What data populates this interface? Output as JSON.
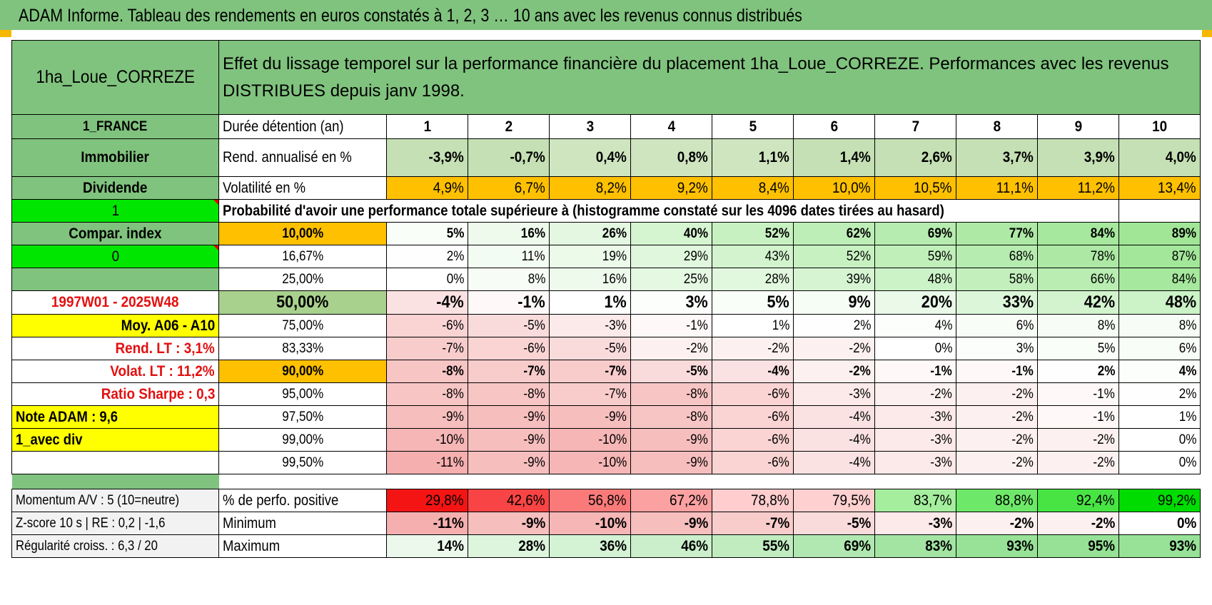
{
  "report_title": "ADAM Informe. Tableau des rendements en euros constatés à 1, 2, 3 … 10 ans avec les revenus connus distribués",
  "fund_name": "1ha_Loue_CORREZE",
  "description": "Effet du lissage temporel sur la performance financière du placement 1ha_Loue_CORREZE. Performances avec les revenus DISTRIBUES depuis janv 1998.",
  "side": {
    "country": "1_FRANCE",
    "category": "Immobilier",
    "income": "Dividende",
    "flag1": "1",
    "compar_index": "Compar. index",
    "flag0": "0",
    "period": "1997W01 - 2025W48",
    "moy": "Moy. A06 - A10",
    "rend_lt": "Rend. LT :   3,1%",
    "volat_lt": "Volat. LT :   11,2%",
    "sharpe": "Ratio Sharpe :    0,3",
    "note": "Note ADAM : 9,6",
    "div": "1_avec div",
    "momentum": "Momentum A/V : 5 (10=neutre)",
    "zscore": "Z-score 10 s | RE : 0,2 | -1,6",
    "regularite": "Régularité croiss. : 6,3 / 20"
  },
  "labels": {
    "duree": "Durée détention (an)",
    "rend": "Rend. annualisé en %",
    "volat": "Volatilité en %",
    "proba": "Probabilité d'avoir une performance totale supérieure à (histogramme constaté sur les 4096 dates tirées au hasard)",
    "pct_pos": "% de perfo. positive",
    "minimum": "Minimum",
    "maximum": "Maximum"
  },
  "years": [
    "1",
    "2",
    "3",
    "4",
    "5",
    "6",
    "7",
    "8",
    "9",
    "10"
  ],
  "rend": [
    "-3,9%",
    "-0,7%",
    "0,4%",
    "0,8%",
    "1,1%",
    "1,4%",
    "2,6%",
    "3,7%",
    "3,9%",
    "4,0%"
  ],
  "volat": [
    "4,9%",
    "6,7%",
    "8,2%",
    "9,2%",
    "8,4%",
    "10,0%",
    "10,5%",
    "11,1%",
    "11,2%",
    "13,4%"
  ],
  "prob_rows": [
    {
      "pct": "10,00%",
      "values": [
        "5%",
        "16%",
        "26%",
        "40%",
        "52%",
        "62%",
        "69%",
        "77%",
        "84%",
        "89%"
      ]
    },
    {
      "pct": "16,67%",
      "values": [
        "2%",
        "11%",
        "19%",
        "29%",
        "43%",
        "52%",
        "59%",
        "68%",
        "78%",
        "87%"
      ]
    },
    {
      "pct": "25,00%",
      "values": [
        "0%",
        "8%",
        "16%",
        "25%",
        "28%",
        "39%",
        "48%",
        "58%",
        "66%",
        "84%"
      ]
    },
    {
      "pct": "50,00%",
      "values": [
        "-4%",
        "-1%",
        "1%",
        "3%",
        "5%",
        "9%",
        "20%",
        "33%",
        "42%",
        "48%"
      ]
    },
    {
      "pct": "75,00%",
      "values": [
        "-6%",
        "-5%",
        "-3%",
        "-1%",
        "1%",
        "2%",
        "4%",
        "6%",
        "8%",
        "8%"
      ]
    },
    {
      "pct": "83,33%",
      "values": [
        "-7%",
        "-6%",
        "-5%",
        "-2%",
        "-2%",
        "-2%",
        "0%",
        "3%",
        "5%",
        "6%"
      ]
    },
    {
      "pct": "90,00%",
      "values": [
        "-8%",
        "-7%",
        "-7%",
        "-5%",
        "-4%",
        "-2%",
        "-1%",
        "-1%",
        "2%",
        "4%"
      ]
    },
    {
      "pct": "95,00%",
      "values": [
        "-8%",
        "-8%",
        "-7%",
        "-8%",
        "-6%",
        "-3%",
        "-2%",
        "-2%",
        "-1%",
        "2%"
      ]
    },
    {
      "pct": "97,50%",
      "values": [
        "-9%",
        "-9%",
        "-9%",
        "-8%",
        "-6%",
        "-4%",
        "-3%",
        "-2%",
        "-1%",
        "1%"
      ]
    },
    {
      "pct": "99,00%",
      "values": [
        "-10%",
        "-9%",
        "-10%",
        "-9%",
        "-6%",
        "-4%",
        "-3%",
        "-2%",
        "-2%",
        "0%"
      ]
    },
    {
      "pct": "99,50%",
      "values": [
        "-11%",
        "-9%",
        "-10%",
        "-9%",
        "-6%",
        "-4%",
        "-3%",
        "-2%",
        "-2%",
        "0%"
      ]
    }
  ],
  "pct_positive": [
    "29,8%",
    "42,6%",
    "56,8%",
    "67,2%",
    "78,8%",
    "79,5%",
    "83,7%",
    "88,8%",
    "92,4%",
    "99,2%"
  ],
  "minimum": [
    "-11%",
    "-9%",
    "-10%",
    "-9%",
    "-7%",
    "-5%",
    "-3%",
    "-2%",
    "-2%",
    "0%"
  ],
  "maximum": [
    "14%",
    "28%",
    "36%",
    "46%",
    "55%",
    "69%",
    "83%",
    "93%",
    "95%",
    "93%"
  ],
  "colors": {
    "header_green": "#80c37e",
    "bright_green": "#00e600",
    "yellow": "#ffff00",
    "orange": "#ffc000",
    "negative_red": "#e31010"
  }
}
